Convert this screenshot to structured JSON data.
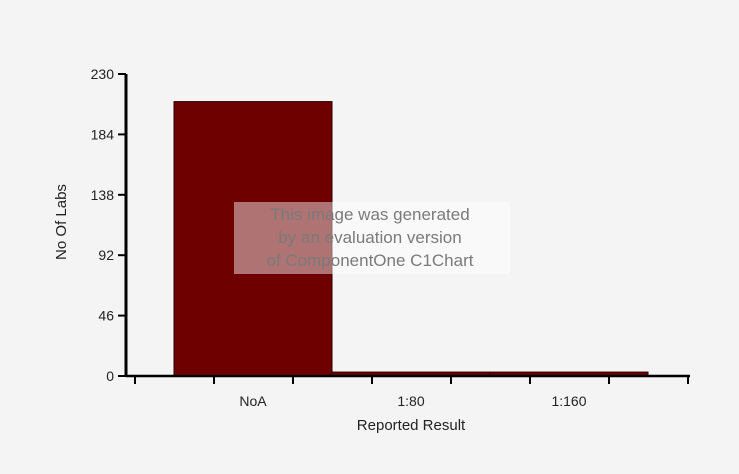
{
  "chart_data": {
    "type": "bar",
    "categories": [
      "NoA",
      "1:80",
      "1:160"
    ],
    "values": [
      209,
      3,
      3
    ],
    "xlabel": "Reported Result",
    "ylabel": "No Of Labs",
    "ylim": [
      0,
      230
    ],
    "yticks": [
      0,
      46,
      92,
      138,
      184,
      230
    ],
    "grid": false,
    "legend": "none",
    "bar_color": "#6e0000",
    "watermark": [
      "This image was generated",
      "by an evaluation version",
      "of ComponentOne C1Chart"
    ]
  }
}
